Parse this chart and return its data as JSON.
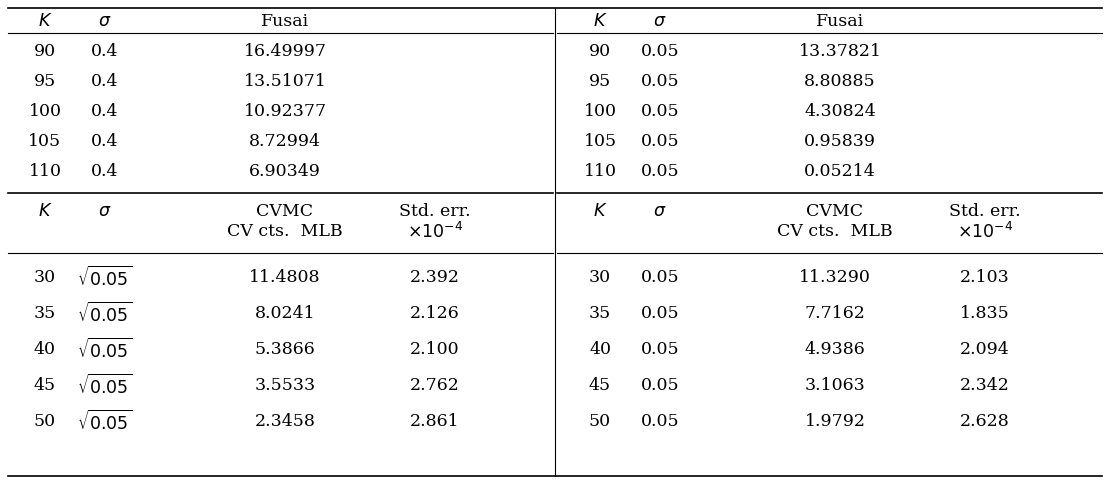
{
  "top_left_rows": [
    [
      "90",
      "0.4",
      "16.49997"
    ],
    [
      "95",
      "0.4",
      "13.51071"
    ],
    [
      "100",
      "0.4",
      "10.92377"
    ],
    [
      "105",
      "0.4",
      "8.72994"
    ],
    [
      "110",
      "0.4",
      "6.90349"
    ]
  ],
  "top_right_rows": [
    [
      "90",
      "0.05",
      "13.37821"
    ],
    [
      "95",
      "0.05",
      "8.80885"
    ],
    [
      "100",
      "0.05",
      "4.30824"
    ],
    [
      "105",
      "0.05",
      "0.95839"
    ],
    [
      "110",
      "0.05",
      "0.05214"
    ]
  ],
  "bot_left_rows": [
    [
      "30",
      "$\\sqrt{0.05}$",
      "11.4808",
      "2.392"
    ],
    [
      "35",
      "$\\sqrt{0.05}$",
      "8.0241",
      "2.126"
    ],
    [
      "40",
      "$\\sqrt{0.05}$",
      "5.3866",
      "2.100"
    ],
    [
      "45",
      "$\\sqrt{0.05}$",
      "3.5533",
      "2.762"
    ],
    [
      "50",
      "$\\sqrt{0.05}$",
      "2.3458",
      "2.861"
    ]
  ],
  "bot_right_rows": [
    [
      "30",
      "0.05",
      "11.3290",
      "2.103"
    ],
    [
      "35",
      "0.05",
      "7.7162",
      "1.835"
    ],
    [
      "40",
      "0.05",
      "4.9386",
      "2.094"
    ],
    [
      "45",
      "0.05",
      "3.1063",
      "2.342"
    ],
    [
      "50",
      "0.05",
      "1.9792",
      "2.628"
    ]
  ],
  "fontsize": 12.5,
  "bg_color": "#ffffff"
}
